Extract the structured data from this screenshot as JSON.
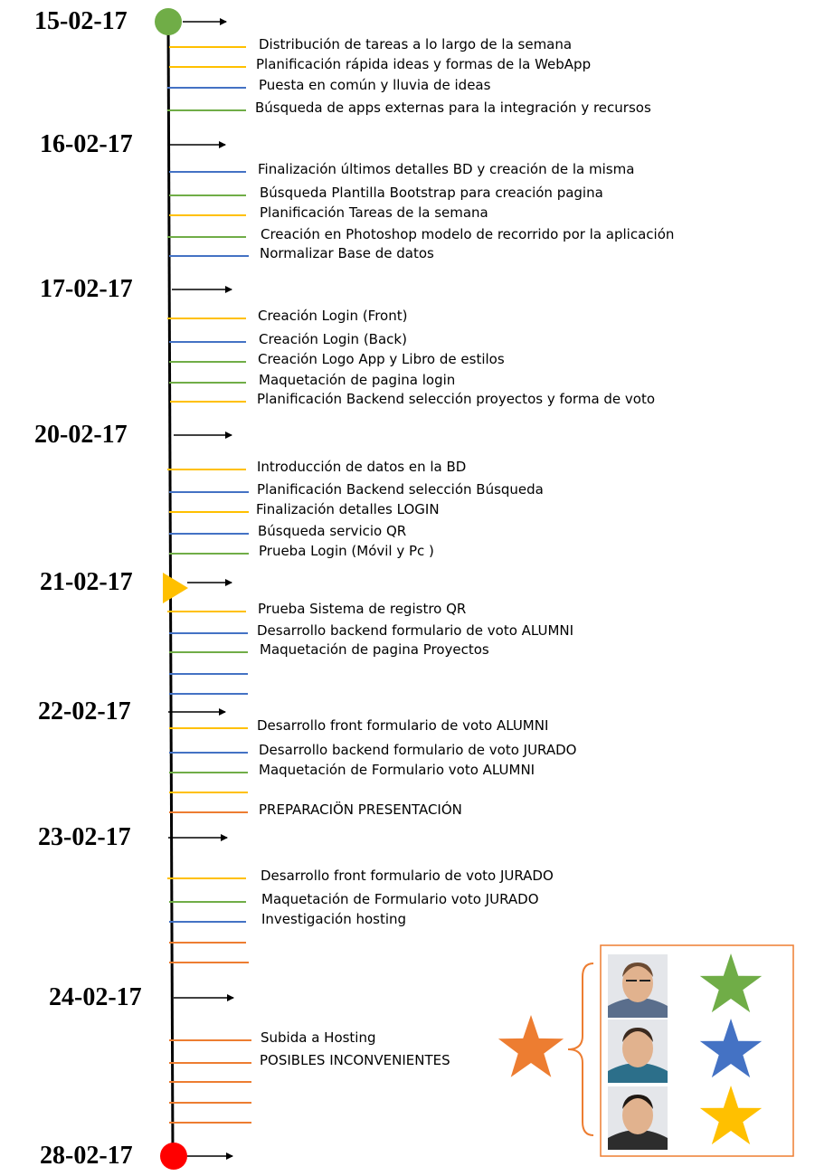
{
  "colors": {
    "yellow": "#ffc000",
    "blue": "#4472c4",
    "green": "#70ad47",
    "orange": "#ed7d31",
    "axis": "#000000",
    "start_marker": "#70ad47",
    "end_marker": "#ff0000",
    "current_marker": "#ffc000"
  },
  "dates": [
    {
      "label": "15-02-17",
      "marker": "start-circle"
    },
    {
      "label": "16-02-17"
    },
    {
      "label": "17-02-17"
    },
    {
      "label": "20-02-17"
    },
    {
      "label": "21-02-17",
      "marker": "current-triangle"
    },
    {
      "label": "22-02-17"
    },
    {
      "label": "23-02-17"
    },
    {
      "label": "24-02-17"
    },
    {
      "label": "28-02-17",
      "marker": "end-circle"
    }
  ],
  "tasks": [
    {
      "text": "Distribución de tareas a lo largo de la semana",
      "color": "yellow"
    },
    {
      "text": "Planificación rápida ideas y formas de la WebApp",
      "color": "yellow"
    },
    {
      "text": "Puesta en común y lluvia de ideas",
      "color": "blue"
    },
    {
      "text": "Búsqueda de apps externas para la integración y recursos",
      "color": "green"
    },
    {
      "text": "Finalización últimos detalles BD y creación de la misma",
      "color": "blue"
    },
    {
      "text": "Búsqueda Plantilla Bootstrap para creación pagina",
      "color": "green"
    },
    {
      "text": "Planificación Tareas de la semana",
      "color": "yellow"
    },
    {
      "text": "Creación en Photoshop modelo de recorrido por la aplicación",
      "color": "green"
    },
    {
      "text": "Normalizar Base de datos",
      "color": "blue"
    },
    {
      "text": "Creación Login (Front)",
      "color": "yellow"
    },
    {
      "text": "Creación Login (Back)",
      "color": "blue"
    },
    {
      "text": "Creación Logo App y Libro de estilos",
      "color": "green"
    },
    {
      "text": "Maquetación de pagina login",
      "color": "green"
    },
    {
      "text": "Planificación Backend selección proyectos y forma de voto",
      "color": "yellow"
    },
    {
      "text": "Introducción de datos en la BD",
      "color": "yellow"
    },
    {
      "text": "Planificación Backend selección Búsqueda",
      "color": "blue"
    },
    {
      "text": "Finalización detalles LOGIN",
      "color": "yellow"
    },
    {
      "text": "Búsqueda servicio QR",
      "color": "blue"
    },
    {
      "text": "Prueba Login (Móvil y Pc )",
      "color": "green"
    },
    {
      "text": "Prueba Sistema de registro QR",
      "color": "yellow"
    },
    {
      "text": "Desarrollo backend formulario de voto ALUMNI",
      "color": "blue"
    },
    {
      "text": "Maquetación de pagina Proyectos",
      "color": "green"
    },
    {
      "text": "",
      "color": "blue"
    },
    {
      "text": "",
      "color": "blue"
    },
    {
      "text": "Desarrollo front formulario de voto ALUMNI",
      "color": "yellow"
    },
    {
      "text": "Desarrollo backend formulario de voto JURADO",
      "color": "blue"
    },
    {
      "text": "Maquetación de Formulario voto ALUMNI",
      "color": "green"
    },
    {
      "text": "",
      "color": "yellow"
    },
    {
      "text": "PREPARACIÖN PRESENTACIÓN",
      "color": "orange"
    },
    {
      "text": "Desarrollo front formulario de voto JURADO",
      "color": "yellow"
    },
    {
      "text": "Maquetación de Formulario voto JURADO",
      "color": "green"
    },
    {
      "text": "Investigación hosting",
      "color": "blue"
    },
    {
      "text": "",
      "color": "orange"
    },
    {
      "text": "",
      "color": "orange"
    },
    {
      "text": "Subida a Hosting",
      "color": "orange"
    },
    {
      "text": "POSIBLES INCONVENIENTES",
      "color": "orange"
    },
    {
      "text": "",
      "color": "orange"
    },
    {
      "text": "",
      "color": "orange"
    },
    {
      "text": "",
      "color": "orange"
    }
  ],
  "legend": {
    "team_star_color": "orange",
    "members": [
      {
        "avatar": "team-member-1-photo",
        "star_color": "green"
      },
      {
        "avatar": "team-member-2-photo",
        "star_color": "blue"
      },
      {
        "avatar": "team-member-3-photo",
        "star_color": "yellow"
      }
    ]
  }
}
